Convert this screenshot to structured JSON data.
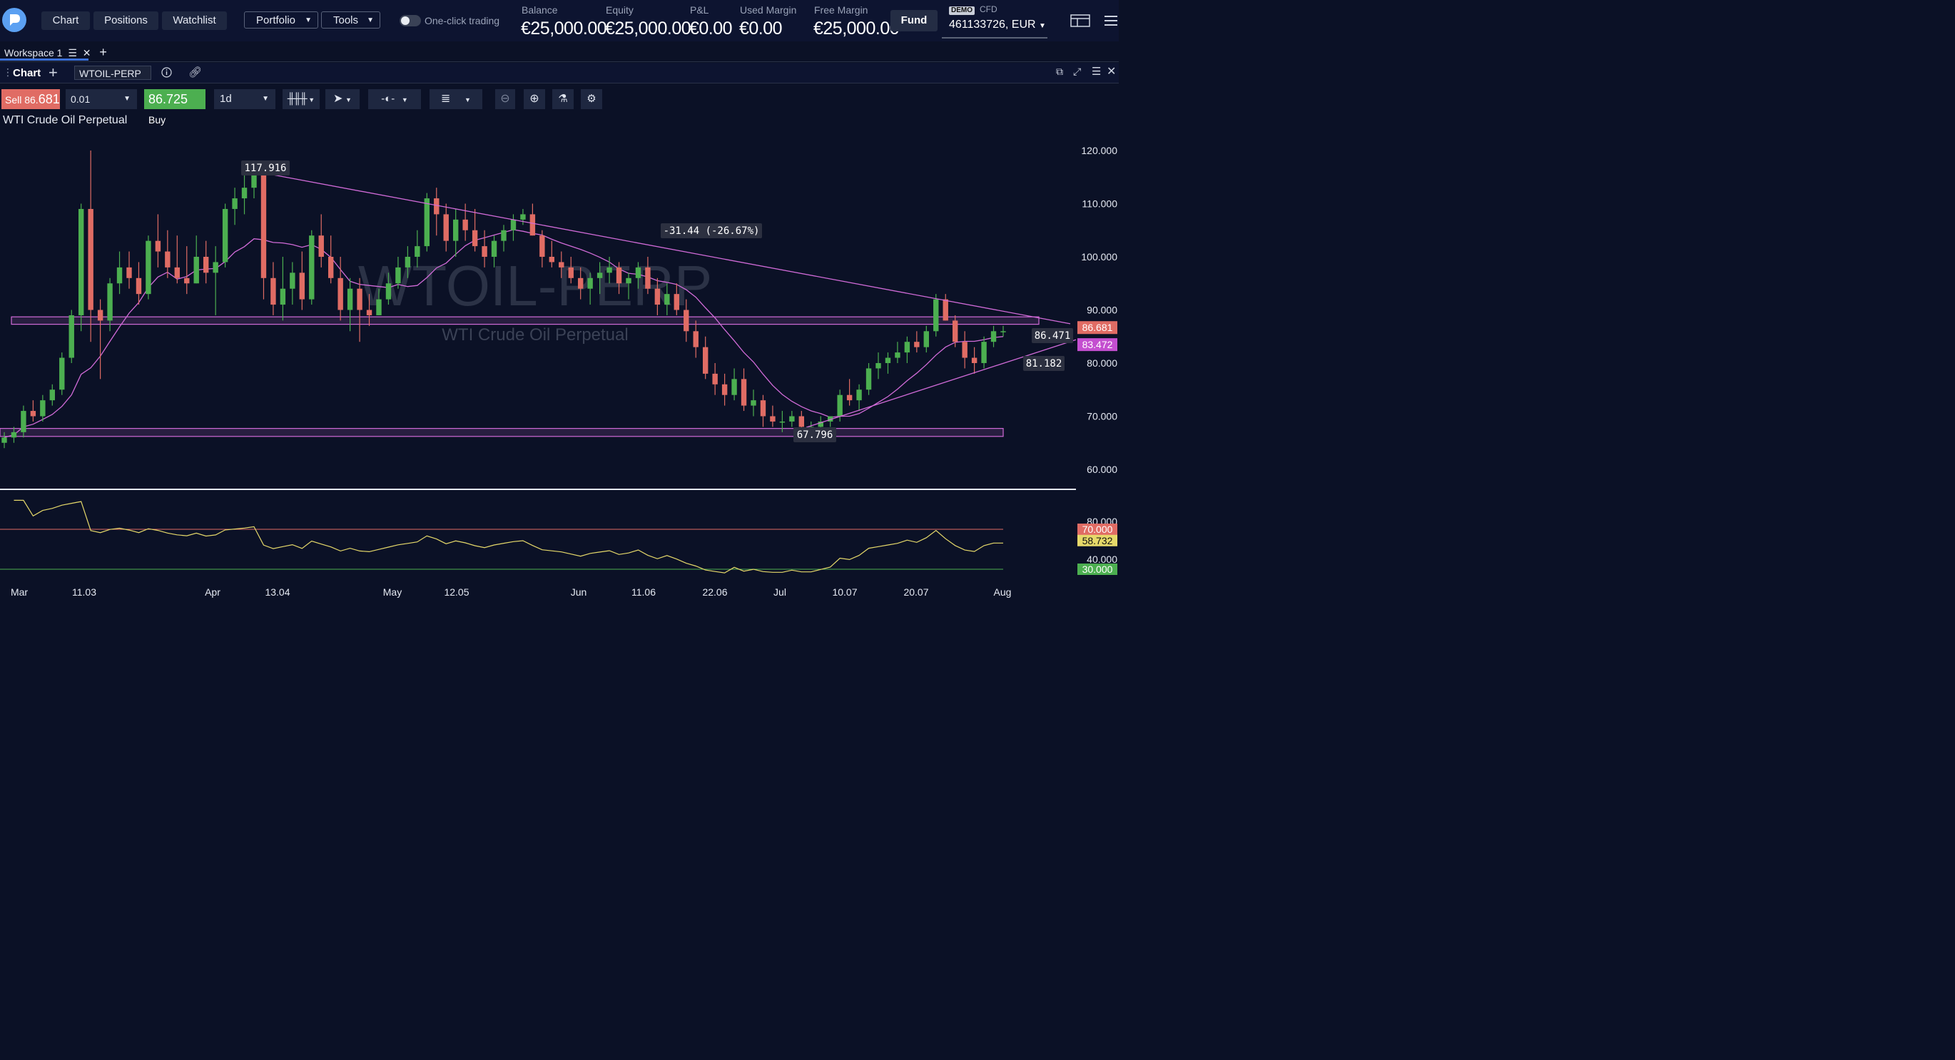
{
  "header": {
    "nav": [
      "Chart",
      "Positions",
      "Watchlist"
    ],
    "portfolio_label": "Portfolio",
    "tools_label": "Tools",
    "one_click_label": "One-click trading",
    "stats": [
      {
        "label": "Balance",
        "value": "€25,000.00"
      },
      {
        "label": "Equity",
        "value": "€25,000.00"
      },
      {
        "label": "P&L",
        "value": "€0.00"
      },
      {
        "label": "Used Margin",
        "value": "€0.00"
      },
      {
        "label": "Free Margin",
        "value": "€25,000.00"
      }
    ],
    "fund_label": "Fund",
    "demo_badge": "DEMO",
    "account_type": "CFD",
    "account": "461133726, EUR"
  },
  "workspace": {
    "tab_label": "Workspace 1"
  },
  "chart_header": {
    "tab_label": "Chart",
    "symbol": "WTOIL-PERP"
  },
  "toolbar": {
    "sell_prefix": "Sell 86.",
    "sell_big": "681",
    "quantity": "0.01",
    "buy_big": "86.725",
    "buy_suffix": " Buy",
    "timeframe": "1d"
  },
  "symbol_description": "WTI Crude Oil Perpetual",
  "watermark": {
    "symbol": "WTOIL-PERP",
    "name": "WTI Crude Oil Perpetual"
  },
  "colors": {
    "background": "#0b1126",
    "up": "#4caf50",
    "down": "#e06c64",
    "drawing": "#d16bd8",
    "rsi": "#e6d96a",
    "rsi_upper": "#e06c64",
    "rsi_lower": "#4caf50"
  },
  "chart_data": {
    "type": "candlestick",
    "y_ticks": [
      "120.000",
      "110.000",
      "100.000",
      "90.000",
      "80.000",
      "70.000",
      "60.000"
    ],
    "y_tick_values": [
      120,
      110,
      100,
      90,
      80,
      70,
      60
    ],
    "x_ticks": [
      "Mar",
      "11.03",
      "Apr",
      "13.04",
      "May",
      "12.05",
      "Jun",
      "11.06",
      "22.06",
      "Jul",
      "10.07",
      "20.07",
      "Aug"
    ],
    "annotations": {
      "high_label": "117.916",
      "low_label": "67.796",
      "measure_label": "-31.44 (-26.67%)",
      "level_label_1": "86.471",
      "level_label_2": "81.182"
    },
    "price_tags": [
      {
        "label": "86.681",
        "value": 86.681,
        "color": "#e06c64"
      },
      {
        "label": "83.472",
        "value": 83.472,
        "color": "#c44fd0"
      }
    ],
    "ohlc": [
      [
        65,
        67,
        64,
        66
      ],
      [
        66,
        68,
        65,
        67
      ],
      [
        67,
        72,
        66,
        71
      ],
      [
        71,
        73,
        69,
        70
      ],
      [
        70,
        74,
        69,
        73
      ],
      [
        73,
        76,
        72,
        75
      ],
      [
        75,
        82,
        74,
        81
      ],
      [
        81,
        90,
        80,
        89
      ],
      [
        89,
        110,
        86,
        109
      ],
      [
        109,
        120,
        84,
        90
      ],
      [
        90,
        92,
        77,
        88
      ],
      [
        88,
        96,
        86,
        95
      ],
      [
        95,
        101,
        93,
        98
      ],
      [
        98,
        101,
        94,
        96
      ],
      [
        96,
        99,
        91,
        93
      ],
      [
        93,
        104,
        92,
        103
      ],
      [
        103,
        108,
        98,
        101
      ],
      [
        101,
        105,
        96,
        98
      ],
      [
        98,
        104,
        95,
        96
      ],
      [
        96,
        102,
        93,
        95
      ],
      [
        95,
        104,
        95,
        100
      ],
      [
        100,
        103,
        95,
        97
      ],
      [
        97,
        102,
        89,
        99
      ],
      [
        99,
        110,
        98,
        109
      ],
      [
        109,
        113,
        106,
        111
      ],
      [
        111,
        116,
        108,
        113
      ],
      [
        113,
        118,
        111,
        116
      ],
      [
        116,
        117,
        92,
        96
      ],
      [
        96,
        99,
        89,
        91
      ],
      [
        91,
        100,
        88,
        94
      ],
      [
        94,
        99,
        91,
        97
      ],
      [
        97,
        101,
        90,
        92
      ],
      [
        92,
        105,
        91,
        104
      ],
      [
        104,
        108,
        98,
        100
      ],
      [
        100,
        104,
        95,
        96
      ],
      [
        96,
        100,
        88,
        90
      ],
      [
        90,
        96,
        86,
        94
      ],
      [
        94,
        96,
        84,
        90
      ],
      [
        90,
        93,
        87,
        89
      ],
      [
        89,
        94,
        89,
        92
      ],
      [
        92,
        97,
        91,
        95
      ],
      [
        95,
        100,
        94,
        98
      ],
      [
        98,
        102,
        96,
        100
      ],
      [
        100,
        105,
        98,
        102
      ],
      [
        102,
        112,
        101,
        111
      ],
      [
        111,
        113,
        104,
        108
      ],
      [
        108,
        110,
        101,
        103
      ],
      [
        103,
        109,
        100,
        107
      ],
      [
        107,
        110,
        103,
        105
      ],
      [
        105,
        109,
        101,
        102
      ],
      [
        102,
        105,
        98,
        100
      ],
      [
        100,
        104,
        98,
        103
      ],
      [
        103,
        106,
        101,
        105
      ],
      [
        105,
        108,
        103,
        107
      ],
      [
        107,
        109,
        106,
        108
      ],
      [
        108,
        110,
        104,
        104
      ],
      [
        104,
        105,
        98,
        100
      ],
      [
        100,
        103,
        98,
        99
      ],
      [
        99,
        101,
        96,
        98
      ],
      [
        98,
        100,
        95,
        96
      ],
      [
        96,
        98,
        92,
        94
      ],
      [
        94,
        97,
        91,
        96
      ],
      [
        96,
        99,
        93,
        97
      ],
      [
        97,
        100,
        95,
        98
      ],
      [
        98,
        99,
        93,
        95
      ],
      [
        95,
        97,
        92,
        96
      ],
      [
        96,
        99,
        94,
        98
      ],
      [
        98,
        100,
        93,
        94
      ],
      [
        94,
        96,
        89,
        91
      ],
      [
        91,
        95,
        89,
        93
      ],
      [
        93,
        95,
        89,
        90
      ],
      [
        90,
        92,
        84,
        86
      ],
      [
        86,
        88,
        81,
        83
      ],
      [
        83,
        85,
        77,
        78
      ],
      [
        78,
        80,
        74,
        76
      ],
      [
        76,
        78,
        72,
        74
      ],
      [
        74,
        79,
        73,
        77
      ],
      [
        77,
        79,
        71,
        72
      ],
      [
        72,
        75,
        70,
        73
      ],
      [
        73,
        74,
        68,
        70
      ],
      [
        70,
        72,
        68,
        69
      ],
      [
        69,
        71,
        67,
        69
      ],
      [
        69,
        71,
        68,
        70
      ],
      [
        70,
        71,
        67,
        68
      ],
      [
        68,
        69,
        67,
        68
      ],
      [
        68,
        70,
        67,
        69
      ],
      [
        69,
        70,
        68,
        70
      ],
      [
        70,
        75,
        69,
        74
      ],
      [
        74,
        77,
        72,
        73
      ],
      [
        73,
        76,
        71,
        75
      ],
      [
        75,
        80,
        74,
        79
      ],
      [
        79,
        82,
        77,
        80
      ],
      [
        80,
        82,
        78,
        81
      ],
      [
        81,
        84,
        80,
        82
      ],
      [
        82,
        85,
        80,
        84
      ],
      [
        84,
        86,
        82,
        83
      ],
      [
        83,
        87,
        82,
        86
      ],
      [
        86,
        93,
        85,
        92
      ],
      [
        92,
        93,
        88,
        88
      ],
      [
        88,
        89,
        83,
        84
      ],
      [
        84,
        86,
        79,
        81
      ],
      [
        81,
        83,
        78,
        80
      ],
      [
        80,
        85,
        79,
        84
      ],
      [
        84,
        87,
        83,
        86
      ],
      [
        86,
        87,
        85,
        86
      ]
    ],
    "rsi": {
      "ticks": [
        "70.000",
        "40.000"
      ],
      "upper": 70,
      "lower": 30,
      "current": 58.732,
      "upper_label": "70.000",
      "current_label": "58.732",
      "lower_label": "30.000",
      "partial_tick": "80.000"
    }
  }
}
